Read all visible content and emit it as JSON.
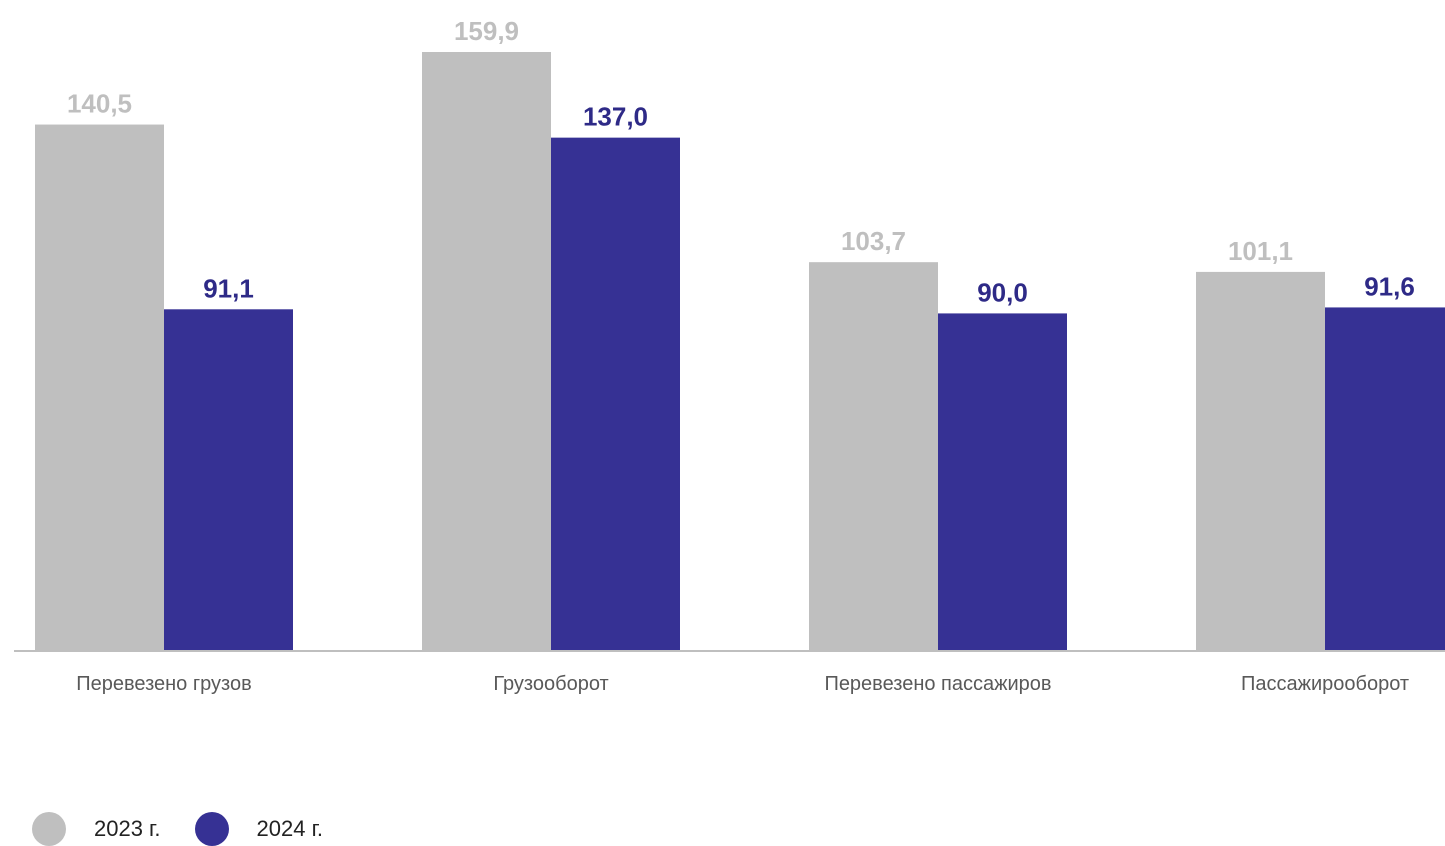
{
  "chart_data": {
    "type": "bar",
    "categories": [
      "Перевезено грузов",
      "Грузооборот",
      "Перевезено пассажиров",
      "Пассажирооборот"
    ],
    "series": [
      {
        "name": "2023 г.",
        "values": [
          140.5,
          159.9,
          103.7,
          101.1
        ],
        "labels": [
          "140,5",
          "159,9",
          "103,7",
          "101,1"
        ],
        "color": "#bfbfbf",
        "label_color": "#bfbfbf"
      },
      {
        "name": "2024 г.",
        "values": [
          91.1,
          137.0,
          90.0,
          91.6
        ],
        "labels": [
          "91,1",
          "137,0",
          "90,0",
          "91,6"
        ],
        "color": "#363194",
        "label_color": "#2e2a87"
      }
    ],
    "ylim": [
      0,
      165
    ],
    "grid": false,
    "legend_position": "bottom-left",
    "axis_color": "#bfbfbf"
  }
}
